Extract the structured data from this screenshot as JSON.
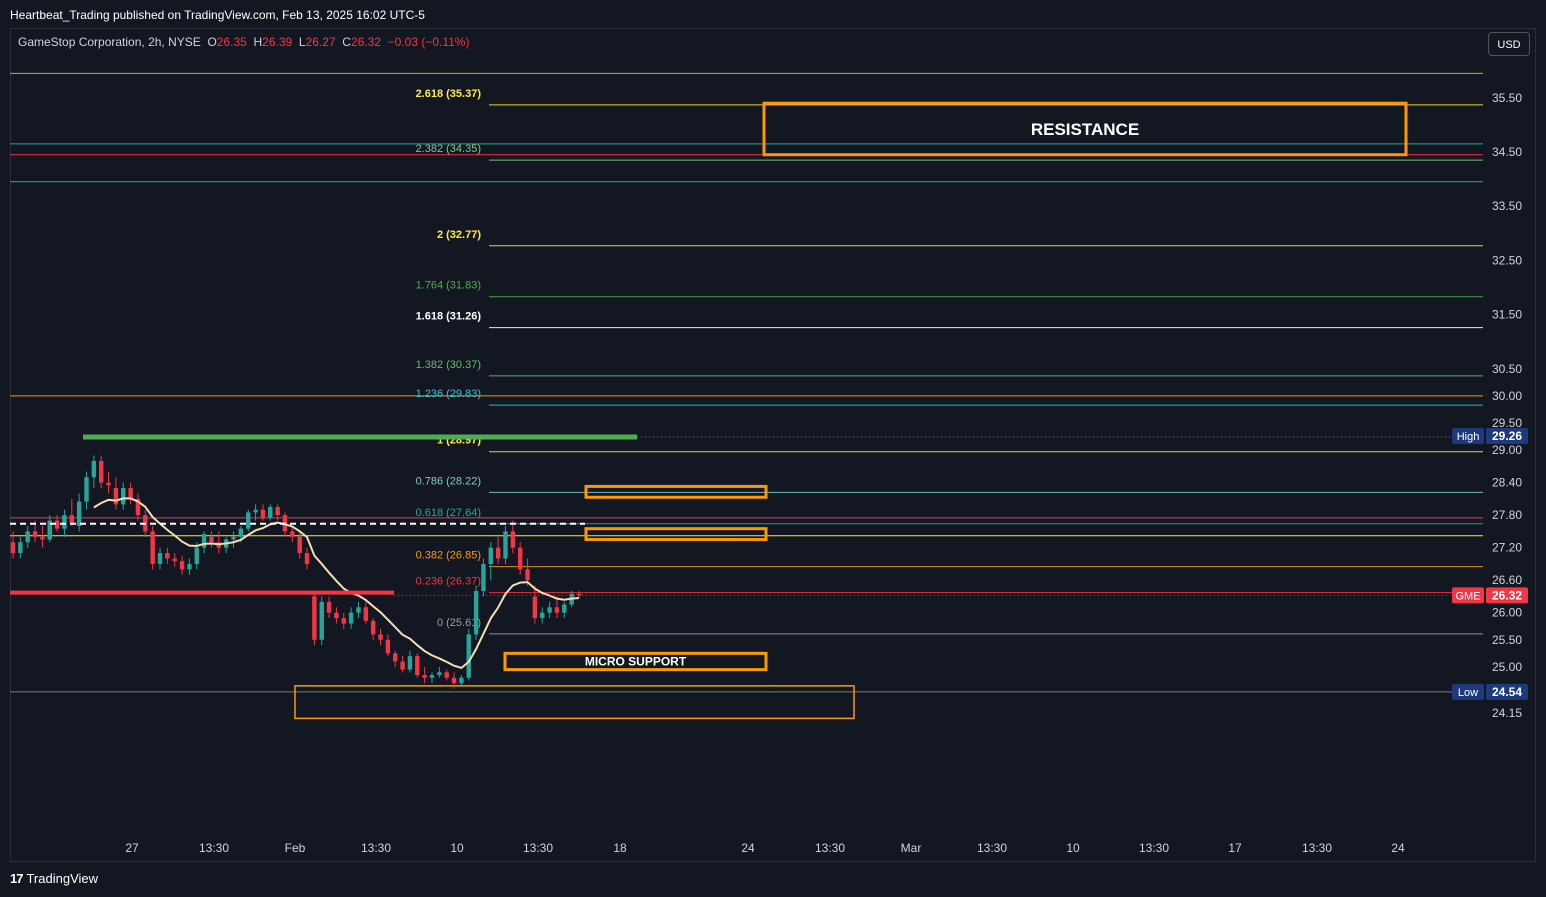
{
  "header": {
    "published": "Heartbeat_Trading published on TradingView.com, Feb 13, 2025 16:02 UTC-5"
  },
  "legend": {
    "symbol": "GameStop Corporation, 2h, NYSE",
    "o_label": "O",
    "o": "26.35",
    "h_label": "H",
    "h": "26.39",
    "l_label": "L",
    "l": "26.27",
    "c_label": "C",
    "c": "26.32",
    "change": "−0.03 (−0.11%)"
  },
  "currency_button": "USD",
  "footer": {
    "logo": "17",
    "brand": "TradingView"
  },
  "colors": {
    "background": "#131722",
    "up": "#26a69a",
    "down": "#f23645",
    "orange": "#ff9800",
    "yellow": "#ffeb3b",
    "green": "#4caf50",
    "teal": "#26a69a",
    "label_blue": "#1e3a7b",
    "ema": "#f5deb3"
  },
  "chart_data": {
    "type": "candlestick",
    "symbol": "GME",
    "timeframe": "2h",
    "last_price": 26.32,
    "high_marker": 29.26,
    "low_marker": 24.54,
    "y_range": [
      23.8,
      36.0
    ],
    "y_ticks": [
      "35.50",
      "34.50",
      "33.50",
      "32.50",
      "31.50",
      "30.50",
      "30.00",
      "29.50",
      "29.00",
      "28.40",
      "27.80",
      "27.20",
      "26.60",
      "26.00",
      "25.50",
      "25.00",
      "24.15"
    ],
    "x_ticks": [
      "27",
      "13:30",
      "Feb",
      "13:30",
      "10",
      "13:30",
      "18",
      "24",
      "13:30",
      "Mar",
      "13:30",
      "10",
      "13:30",
      "17",
      "13:30",
      "24"
    ],
    "fib_levels": [
      {
        "label": "2.618 (35.37)",
        "value": 35.37,
        "color": "#ffeb3b"
      },
      {
        "label": "2.382 (34.35)",
        "value": 34.35,
        "color": "#81c784"
      },
      {
        "label": "2 (32.77)",
        "value": 32.77,
        "color": "#ffeb3b"
      },
      {
        "label": "1.764 (31.83)",
        "value": 31.83,
        "color": "#4caf50"
      },
      {
        "label": "1.618 (31.26)",
        "value": 31.26,
        "color": "#ffffff"
      },
      {
        "label": "1.382 (30.37)",
        "value": 30.37,
        "color": "#66bb6a"
      },
      {
        "label": "1.236 (29.83)",
        "value": 29.83,
        "color": "#26c6da"
      },
      {
        "label": "1 (28.97)",
        "value": 28.97,
        "color": "#ffeb3b"
      },
      {
        "label": "0.786 (28.22)",
        "value": 28.22,
        "color": "#80cbc4"
      },
      {
        "label": "0.618 (27.64)",
        "value": 27.64,
        "color": "#26a69a"
      },
      {
        "label": "0.382 (26.85)",
        "value": 26.85,
        "color": "#ff9800"
      },
      {
        "label": "0.236 (26.37)",
        "value": 26.37,
        "color": "#f23645"
      },
      {
        "label": "0 (25.61)",
        "value": 25.61,
        "color": "#9e9e9e"
      }
    ],
    "horizontal_lines": [
      {
        "value": 35.95,
        "color": "#ff9800"
      },
      {
        "value": 34.65,
        "color": "#26a69a"
      },
      {
        "value": 34.45,
        "color": "#f23645"
      },
      {
        "value": 33.95,
        "color": "#26a69a"
      },
      {
        "value": 30.0,
        "color": "#ff9800"
      },
      {
        "value": 27.75,
        "color": "#f23645"
      },
      {
        "value": 27.42,
        "color": "#ffeb3b"
      },
      {
        "value": 24.54,
        "color": "#787b86"
      }
    ],
    "zones": [
      {
        "label": "RESISTANCE",
        "top": 35.4,
        "bottom": 34.45
      },
      {
        "label": "",
        "top": 28.33,
        "bottom": 28.13
      },
      {
        "label": "",
        "top": 27.55,
        "bottom": 27.35
      },
      {
        "label": "MICRO SUPPORT",
        "top": 25.25,
        "bottom": 24.95
      },
      {
        "label": "",
        "top": 24.65,
        "bottom": 24.05
      }
    ],
    "price_labels": [
      {
        "tag": "High",
        "value": "29.26"
      },
      {
        "tag": "GME",
        "value": "26.32"
      },
      {
        "tag": "Low",
        "value": "24.54"
      }
    ],
    "candles": [
      [
        27.3,
        27.5,
        27.0,
        27.1
      ],
      [
        27.1,
        27.4,
        27.0,
        27.3
      ],
      [
        27.3,
        27.6,
        27.2,
        27.5
      ],
      [
        27.5,
        27.7,
        27.3,
        27.4
      ],
      [
        27.4,
        27.6,
        27.2,
        27.35
      ],
      [
        27.35,
        27.8,
        27.3,
        27.7
      ],
      [
        27.7,
        27.8,
        27.5,
        27.55
      ],
      [
        27.55,
        27.9,
        27.4,
        27.8
      ],
      [
        27.8,
        28.1,
        27.6,
        27.65
      ],
      [
        27.6,
        28.2,
        27.5,
        28.05
      ],
      [
        28.05,
        28.6,
        27.9,
        28.5
      ],
      [
        28.5,
        28.9,
        28.3,
        28.8
      ],
      [
        28.8,
        28.9,
        28.3,
        28.4
      ],
      [
        28.4,
        28.6,
        28.2,
        28.35
      ],
      [
        28.3,
        28.5,
        27.9,
        28.0
      ],
      [
        28.0,
        28.4,
        27.9,
        28.3
      ],
      [
        28.3,
        28.4,
        28.0,
        28.1
      ],
      [
        28.1,
        28.2,
        27.7,
        27.8
      ],
      [
        27.8,
        27.9,
        27.4,
        27.5
      ],
      [
        27.5,
        27.6,
        26.8,
        26.9
      ],
      [
        26.9,
        27.2,
        26.8,
        27.1
      ],
      [
        27.1,
        27.2,
        26.9,
        27.0
      ],
      [
        27.0,
        27.1,
        26.85,
        26.95
      ],
      [
        26.95,
        27.05,
        26.7,
        26.8
      ],
      [
        26.8,
        27.0,
        26.7,
        26.9
      ],
      [
        26.9,
        27.3,
        26.8,
        27.2
      ],
      [
        27.2,
        27.5,
        27.1,
        27.45
      ],
      [
        27.4,
        27.5,
        27.2,
        27.3
      ],
      [
        27.3,
        27.5,
        27.1,
        27.2
      ],
      [
        27.2,
        27.4,
        27.1,
        27.35
      ],
      [
        27.35,
        27.5,
        27.2,
        27.4
      ],
      [
        27.4,
        27.6,
        27.3,
        27.55
      ],
      [
        27.55,
        27.9,
        27.5,
        27.85
      ],
      [
        27.85,
        28.0,
        27.7,
        27.9
      ],
      [
        27.9,
        28.0,
        27.7,
        27.75
      ],
      [
        27.75,
        28.0,
        27.7,
        27.95
      ],
      [
        27.95,
        28.0,
        27.7,
        27.8
      ],
      [
        27.8,
        27.85,
        27.4,
        27.5
      ],
      [
        27.5,
        27.6,
        27.3,
        27.4
      ],
      [
        27.4,
        27.5,
        27.0,
        27.1
      ],
      [
        27.1,
        27.2,
        26.8,
        26.9
      ],
      [
        26.3,
        26.4,
        25.4,
        25.5
      ],
      [
        25.5,
        26.3,
        25.4,
        26.2
      ],
      [
        26.2,
        26.3,
        25.9,
        26.0
      ],
      [
        26.0,
        26.1,
        25.8,
        25.9
      ],
      [
        25.9,
        26.0,
        25.7,
        25.8
      ],
      [
        25.8,
        26.1,
        25.7,
        26.0
      ],
      [
        26.0,
        26.2,
        25.9,
        26.1
      ],
      [
        26.1,
        26.2,
        25.8,
        25.85
      ],
      [
        25.85,
        25.9,
        25.5,
        25.6
      ],
      [
        25.6,
        25.7,
        25.4,
        25.5
      ],
      [
        25.5,
        25.6,
        25.2,
        25.25
      ],
      [
        25.25,
        25.3,
        25.0,
        25.1
      ],
      [
        25.1,
        25.2,
        24.9,
        24.95
      ],
      [
        24.95,
        25.3,
        24.9,
        25.2
      ],
      [
        25.2,
        25.25,
        24.8,
        24.85
      ],
      [
        24.85,
        25.0,
        24.7,
        24.8
      ],
      [
        24.8,
        24.9,
        24.7,
        24.85
      ],
      [
        24.85,
        25.0,
        24.8,
        24.9
      ],
      [
        24.9,
        24.95,
        24.75,
        24.8
      ],
      [
        24.8,
        24.9,
        24.6,
        24.7
      ],
      [
        24.7,
        24.85,
        24.65,
        24.8
      ],
      [
        24.8,
        25.7,
        24.75,
        25.6
      ],
      [
        25.6,
        26.5,
        25.5,
        26.4
      ],
      [
        26.4,
        27.0,
        26.3,
        26.9
      ],
      [
        26.9,
        27.3,
        26.6,
        27.2
      ],
      [
        27.2,
        27.4,
        26.9,
        27.0
      ],
      [
        27.0,
        27.6,
        26.9,
        27.5
      ],
      [
        27.5,
        27.7,
        27.1,
        27.2
      ],
      [
        27.2,
        27.3,
        26.7,
        26.8
      ],
      [
        26.8,
        27.0,
        26.5,
        26.6
      ],
      [
        26.3,
        26.5,
        25.8,
        25.9
      ],
      [
        25.9,
        26.1,
        25.8,
        26.0
      ],
      [
        26.0,
        26.2,
        25.9,
        26.1
      ],
      [
        26.1,
        26.3,
        25.9,
        26.0
      ],
      [
        26.0,
        26.2,
        25.9,
        26.15
      ],
      [
        26.15,
        26.4,
        26.1,
        26.35
      ],
      [
        26.35,
        26.4,
        26.27,
        26.32
      ]
    ]
  }
}
